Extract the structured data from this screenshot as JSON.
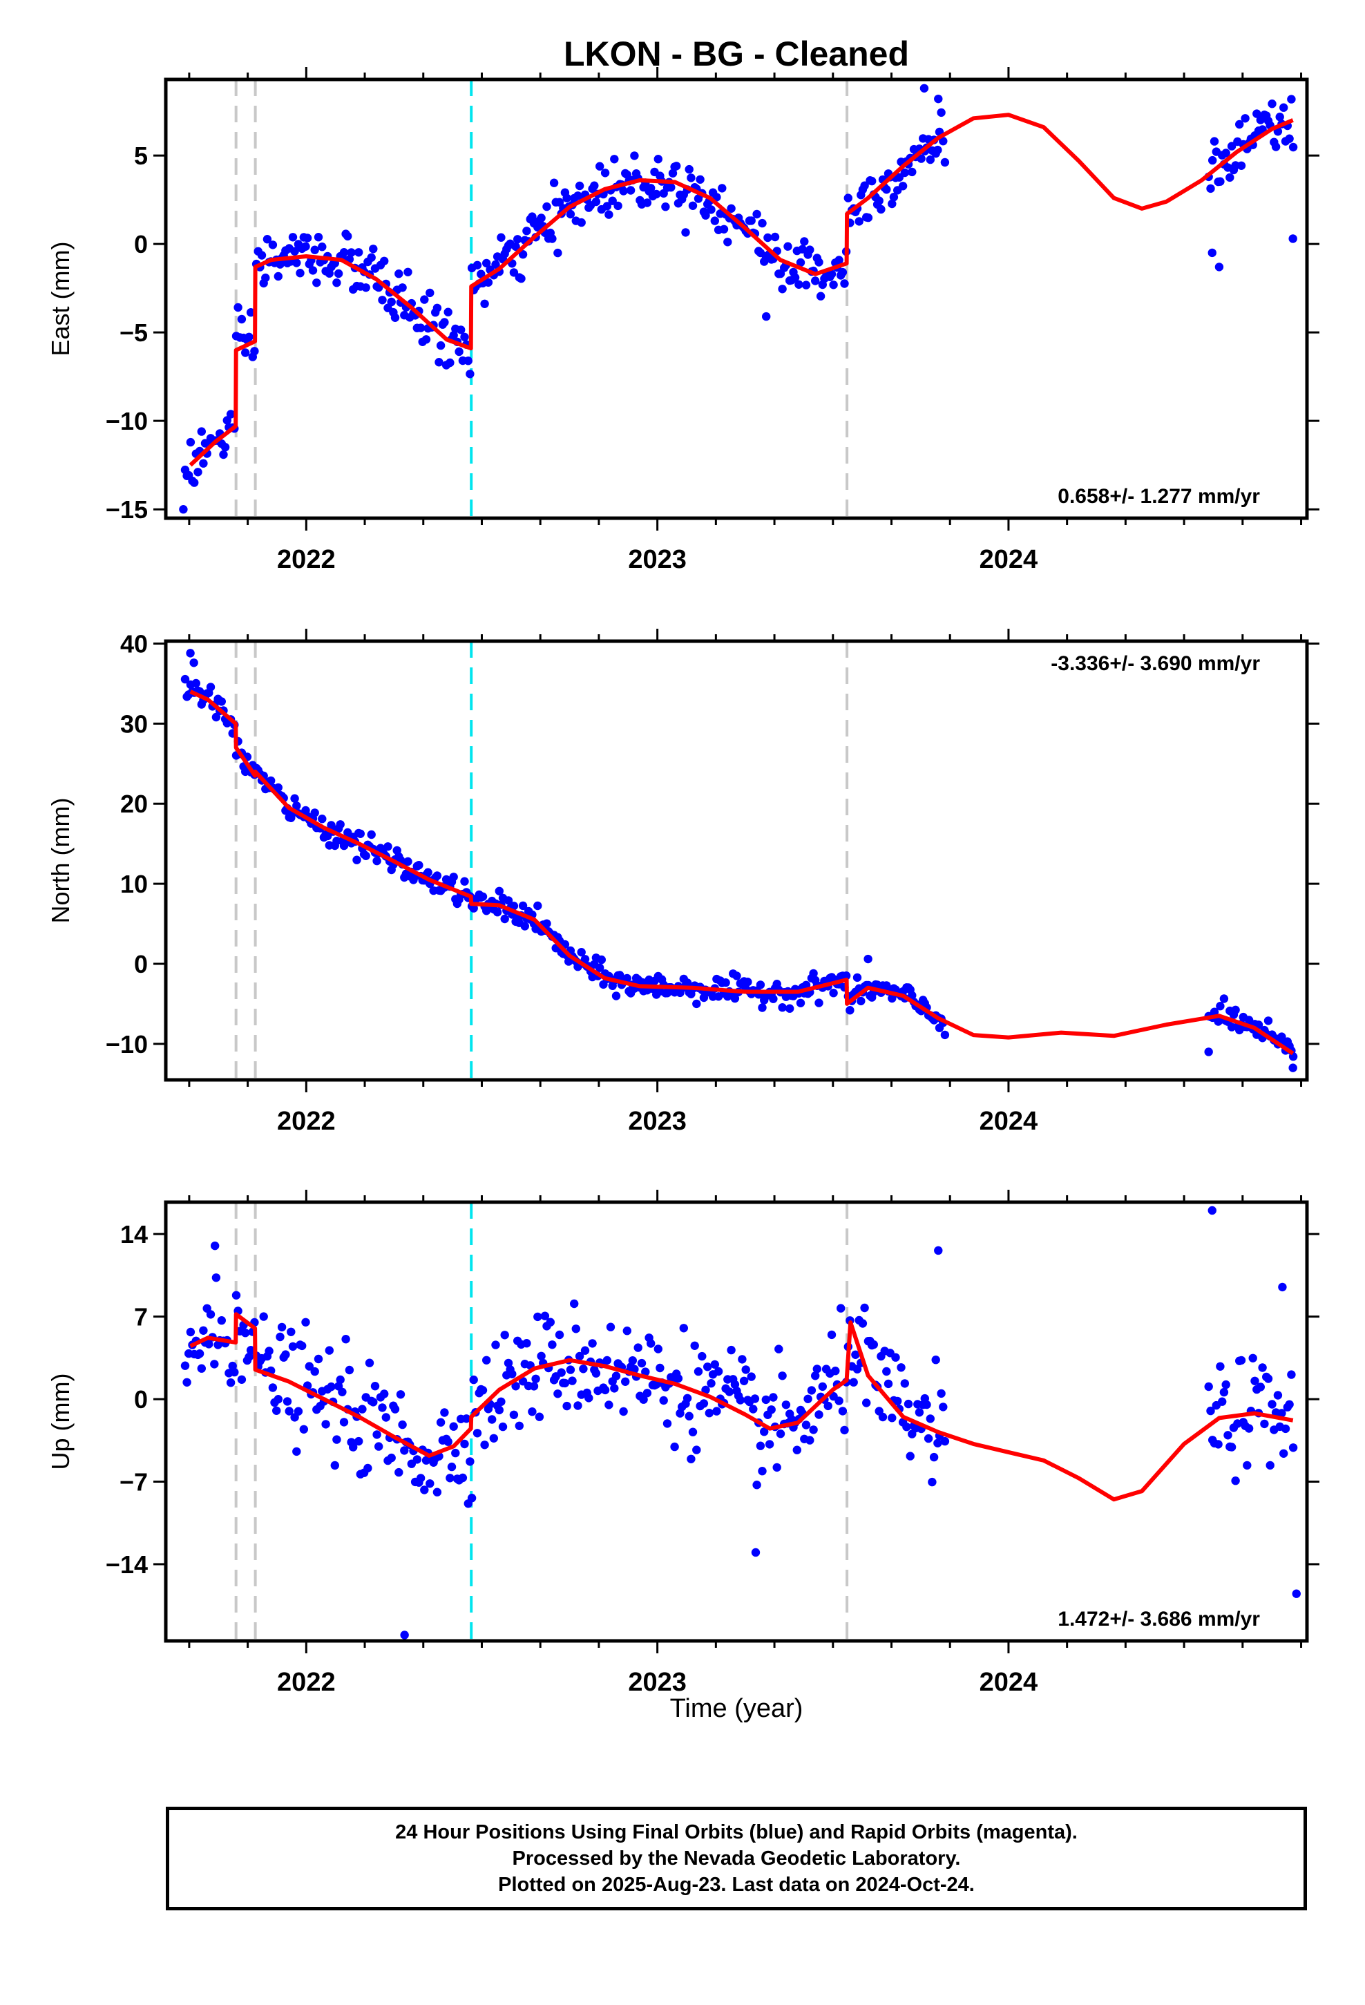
{
  "title": "LKON  - BG - Cleaned",
  "xlabel": "Time (year)",
  "footer": {
    "line1": "24 Hour Positions Using Final Orbits (blue) and Rapid Orbits (magenta).",
    "line2": "Processed by the Nevada Geodetic Laboratory.",
    "line3": "Plotted on 2025-Aug-23. Last data on 2024-Oct-24."
  },
  "colors": {
    "points": "#0000ff",
    "model": "#ff0000",
    "equipment_change": "#c8c8c8",
    "earthquake": "#00e5ee"
  },
  "chart_data": [
    {
      "type": "scatter",
      "component": "East",
      "ylabel": "East (mm)",
      "rate": "0.658+/- 1.277 mm/yr",
      "rate_position": "bottom-right",
      "xlim": [
        2021.6,
        2024.85
      ],
      "ylim": [
        -15.5,
        9.3
      ],
      "xticks": [
        2022,
        2023,
        2024
      ],
      "yticks": [
        -15,
        -10,
        -5,
        0,
        5
      ],
      "vlines_gray": [
        2021.8,
        2021.855,
        2023.54
      ],
      "vlines_cyan": [
        2022.47
      ],
      "model": [
        [
          2021.67,
          -12.5
        ],
        [
          2021.74,
          -11.2
        ],
        [
          2021.799,
          -10.3
        ],
        [
          2021.8,
          -6.0
        ],
        [
          2021.854,
          -5.5
        ],
        [
          2021.855,
          -1.3
        ],
        [
          2021.9,
          -0.9
        ],
        [
          2022.0,
          -0.7
        ],
        [
          2022.1,
          -0.9
        ],
        [
          2022.2,
          -2.0
        ],
        [
          2022.3,
          -3.6
        ],
        [
          2022.4,
          -5.4
        ],
        [
          2022.469,
          -5.9
        ],
        [
          2022.47,
          -2.4
        ],
        [
          2022.55,
          -1.4
        ],
        [
          2022.65,
          0.4
        ],
        [
          2022.75,
          2.1
        ],
        [
          2022.85,
          3.1
        ],
        [
          2022.95,
          3.6
        ],
        [
          2023.05,
          3.5
        ],
        [
          2023.15,
          2.6
        ],
        [
          2023.25,
          0.9
        ],
        [
          2023.35,
          -0.9
        ],
        [
          2023.45,
          -1.7
        ],
        [
          2023.539,
          -1.1
        ],
        [
          2023.54,
          1.7
        ],
        [
          2023.6,
          2.6
        ],
        [
          2023.7,
          4.4
        ],
        [
          2023.8,
          6.0
        ],
        [
          2023.9,
          7.1
        ],
        [
          2024.0,
          7.3
        ],
        [
          2024.1,
          6.6
        ],
        [
          2024.2,
          4.7
        ],
        [
          2024.3,
          2.6
        ],
        [
          2024.38,
          2.0
        ],
        [
          2024.45,
          2.4
        ],
        [
          2024.55,
          3.6
        ],
        [
          2024.65,
          5.2
        ],
        [
          2024.75,
          6.5
        ],
        [
          2024.81,
          7.0
        ]
      ],
      "noise": 1.1,
      "outliers": [
        [
          2021.65,
          -15.0
        ],
        [
          2024.58,
          -0.5
        ],
        [
          2024.6,
          -1.3
        ],
        [
          2024.81,
          0.3
        ],
        [
          2023.31,
          -4.1
        ],
        [
          2023.8,
          8.2
        ],
        [
          2023.76,
          8.8
        ]
      ]
    },
    {
      "type": "scatter",
      "component": "North",
      "ylabel": "North (mm)",
      "rate": "-3.336+/- 3.690 mm/yr",
      "rate_position": "top-right",
      "xlim": [
        2021.6,
        2024.85
      ],
      "ylim": [
        -14.5,
        40.3
      ],
      "xticks": [
        2022,
        2023,
        2024
      ],
      "yticks": [
        -10,
        0,
        10,
        20,
        30,
        40
      ],
      "vlines_gray": [
        2021.8,
        2021.855,
        2023.54
      ],
      "vlines_cyan": [
        2022.47
      ],
      "model": [
        [
          2021.67,
          34.0
        ],
        [
          2021.72,
          33.0
        ],
        [
          2021.799,
          30.0
        ],
        [
          2021.8,
          27.0
        ],
        [
          2021.854,
          23.5
        ],
        [
          2021.855,
          24.0
        ],
        [
          2021.95,
          19.5
        ],
        [
          2022.05,
          17.0
        ],
        [
          2022.15,
          15.0
        ],
        [
          2022.25,
          12.8
        ],
        [
          2022.35,
          10.5
        ],
        [
          2022.469,
          8.4
        ],
        [
          2022.47,
          7.5
        ],
        [
          2022.55,
          7.3
        ],
        [
          2022.65,
          5.5
        ],
        [
          2022.75,
          1.0
        ],
        [
          2022.85,
          -1.8
        ],
        [
          2022.95,
          -2.8
        ],
        [
          2023.1,
          -3.0
        ],
        [
          2023.25,
          -3.5
        ],
        [
          2023.4,
          -3.5
        ],
        [
          2023.539,
          -2.0
        ],
        [
          2023.54,
          -5.0
        ],
        [
          2023.6,
          -3.0
        ],
        [
          2023.7,
          -4.0
        ],
        [
          2023.8,
          -6.8
        ],
        [
          2023.9,
          -8.9
        ],
        [
          2024.0,
          -9.2
        ],
        [
          2024.15,
          -8.6
        ],
        [
          2024.3,
          -9.0
        ],
        [
          2024.45,
          -7.6
        ],
        [
          2024.6,
          -6.5
        ],
        [
          2024.7,
          -8.0
        ],
        [
          2024.81,
          -11.2
        ]
      ],
      "noise": 1.1,
      "outliers": [
        [
          2021.67,
          38.8
        ],
        [
          2021.68,
          37.6
        ],
        [
          2024.81,
          -13.0
        ],
        [
          2024.57,
          -11.0
        ],
        [
          2023.6,
          0.6
        ]
      ]
    },
    {
      "type": "scatter",
      "component": "Up",
      "ylabel": "Up (mm)",
      "rate": "1.472+/- 3.686 mm/yr",
      "rate_position": "bottom-right",
      "xlim": [
        2021.6,
        2024.85
      ],
      "ylim": [
        -20.5,
        16.7
      ],
      "xticks": [
        2022,
        2023,
        2024
      ],
      "yticks": [
        -14,
        -7,
        0,
        7,
        14
      ],
      "vlines_gray": [
        2021.8,
        2021.855,
        2023.54
      ],
      "vlines_cyan": [
        2022.47
      ],
      "model": [
        [
          2021.67,
          4.5
        ],
        [
          2021.72,
          5.2
        ],
        [
          2021.799,
          4.8
        ],
        [
          2021.8,
          7.2
        ],
        [
          2021.854,
          6.0
        ],
        [
          2021.855,
          2.5
        ],
        [
          2021.95,
          1.5
        ],
        [
          2022.05,
          0.0
        ],
        [
          2022.15,
          -1.5
        ],
        [
          2022.25,
          -3.2
        ],
        [
          2022.35,
          -4.8
        ],
        [
          2022.42,
          -4.0
        ],
        [
          2022.469,
          -2.5
        ],
        [
          2022.47,
          -1.5
        ],
        [
          2022.55,
          0.8
        ],
        [
          2022.65,
          2.6
        ],
        [
          2022.75,
          3.3
        ],
        [
          2022.85,
          2.8
        ],
        [
          2022.95,
          2.0
        ],
        [
          2023.05,
          1.3
        ],
        [
          2023.15,
          0.2
        ],
        [
          2023.25,
          -1.3
        ],
        [
          2023.32,
          -2.5
        ],
        [
          2023.4,
          -2.0
        ],
        [
          2023.5,
          0.8
        ],
        [
          2023.539,
          1.6
        ],
        [
          2023.55,
          6.5
        ],
        [
          2023.6,
          2.0
        ],
        [
          2023.7,
          -1.5
        ],
        [
          2023.8,
          -2.8
        ],
        [
          2023.9,
          -3.8
        ],
        [
          2024.0,
          -4.5
        ],
        [
          2024.1,
          -5.2
        ],
        [
          2024.2,
          -6.7
        ],
        [
          2024.3,
          -8.5
        ],
        [
          2024.38,
          -7.8
        ],
        [
          2024.5,
          -3.8
        ],
        [
          2024.6,
          -1.6
        ],
        [
          2024.7,
          -1.2
        ],
        [
          2024.81,
          -1.8
        ]
      ],
      "noise": 3.2,
      "outliers": [
        [
          2024.58,
          16.0
        ],
        [
          2022.28,
          -20.0
        ],
        [
          2024.82,
          -16.5
        ],
        [
          2021.74,
          13.0
        ],
        [
          2023.28,
          -13.0
        ],
        [
          2024.78,
          9.5
        ],
        [
          2023.8,
          12.6
        ]
      ]
    }
  ]
}
